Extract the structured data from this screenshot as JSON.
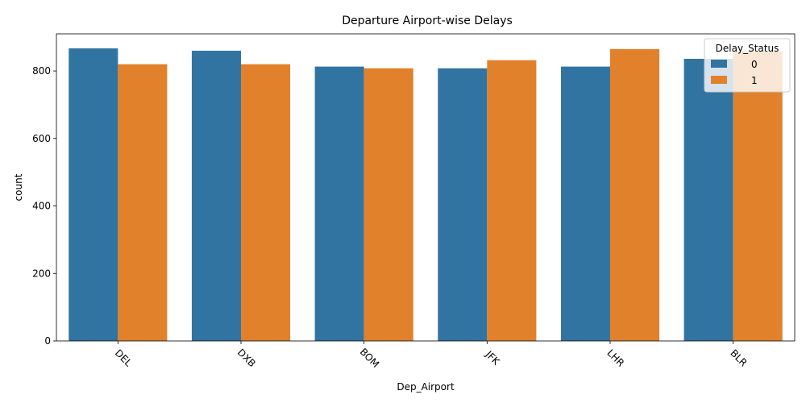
{
  "chart_data": {
    "type": "bar",
    "title": "Departure Airport-wise Delays",
    "xlabel": "Dep_Airport",
    "ylabel": "count",
    "categories": [
      "DEL",
      "DXB",
      "BOM",
      "JFK",
      "LHR",
      "BLR"
    ],
    "series": [
      {
        "name": "0",
        "values": [
          867,
          860,
          813,
          808,
          813,
          836
        ],
        "color": "#3274a1"
      },
      {
        "name": "1",
        "values": [
          820,
          820,
          808,
          832,
          865,
          858
        ],
        "color": "#e1812c"
      }
    ],
    "ylim": [
      0,
      910
    ],
    "yticks": [
      0,
      200,
      400,
      600,
      800
    ],
    "xtick_rotation": 45,
    "grid": false,
    "legend": {
      "title": "Delay_Status",
      "placement": "top-right"
    }
  }
}
